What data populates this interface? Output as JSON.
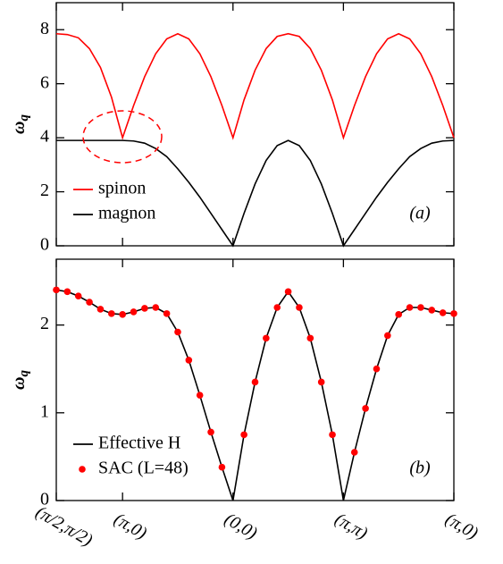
{
  "chart_data": [
    {
      "type": "line",
      "ylabel": "ω",
      "ylabel_subscript": "q",
      "panel_label": "(a)",
      "legend": "lower left",
      "xlim": [
        0,
        3.6
      ],
      "xticks": [
        0,
        0.6,
        1.6,
        2.6,
        3.6
      ],
      "ylim": [
        0,
        9
      ],
      "yticks": [
        0,
        2,
        4,
        6,
        8
      ],
      "x": [
        0,
        0.1,
        0.2,
        0.3,
        0.4,
        0.5,
        0.6,
        0.7,
        0.8,
        0.9,
        1.0,
        1.1,
        1.2,
        1.3,
        1.4,
        1.5,
        1.6,
        1.7,
        1.8,
        1.9,
        2.0,
        2.1,
        2.2,
        2.3,
        2.4,
        2.5,
        2.6,
        2.7,
        2.8,
        2.9,
        3.0,
        3.1,
        3.2,
        3.3,
        3.4,
        3.5,
        3.6
      ],
      "series": [
        {
          "name": "spinon",
          "color": "#ff0000",
          "type": "line",
          "values": [
            7.85,
            7.82,
            7.7,
            7.3,
            6.6,
            5.5,
            4.0,
            5.19,
            6.26,
            7.11,
            7.66,
            7.85,
            7.66,
            7.11,
            6.26,
            5.19,
            4,
            5.4,
            6.5,
            7.3,
            7.75,
            7.85,
            7.75,
            7.3,
            6.5,
            5.4,
            4,
            5.19,
            6.26,
            7.11,
            7.66,
            7.85,
            7.66,
            7.11,
            6.26,
            5.19,
            4
          ]
        },
        {
          "name": "magnon",
          "color": "#000000",
          "type": "line",
          "values": [
            3.9,
            3.9,
            3.9,
            3.9,
            3.9,
            3.9,
            3.9,
            3.88,
            3.8,
            3.6,
            3.3,
            2.85,
            2.35,
            1.8,
            1.2,
            0.6,
            0,
            1.2,
            2.29,
            3.16,
            3.71,
            3.9,
            3.71,
            3.16,
            2.29,
            1.2,
            0,
            0.6,
            1.2,
            1.8,
            2.35,
            2.85,
            3.3,
            3.6,
            3.8,
            3.88,
            3.9
          ]
        }
      ]
    },
    {
      "type": "line",
      "ylabel": "ω",
      "ylabel_subscript": "q",
      "panel_label": "(b)",
      "legend": "lower left",
      "xlim": [
        0,
        3.6
      ],
      "xticks": [
        {
          "value": 0,
          "label": "(π/2,π/2)"
        },
        {
          "value": 0.6,
          "label": "(π,0)"
        },
        {
          "value": 1.6,
          "label": "(0,0)"
        },
        {
          "value": 2.6,
          "label": "(π,π)"
        },
        {
          "value": 3.6,
          "label": "(π,0)"
        }
      ],
      "ylim": [
        0,
        2.75
      ],
      "yticks": [
        0,
        1,
        2
      ],
      "x": [
        0,
        0.1,
        0.2,
        0.3,
        0.4,
        0.5,
        0.6,
        0.7,
        0.8,
        0.9,
        1.0,
        1.1,
        1.2,
        1.3,
        1.4,
        1.5,
        1.6,
        1.7,
        1.8,
        1.9,
        2.0,
        2.1,
        2.2,
        2.3,
        2.4,
        2.5,
        2.6,
        2.7,
        2.8,
        2.9,
        3.0,
        3.1,
        3.2,
        3.3,
        3.4,
        3.5,
        3.6
      ],
      "series": [
        {
          "name": "Effective H",
          "color": "#000000",
          "type": "line",
          "values": [
            2.4,
            2.38,
            2.33,
            2.26,
            2.18,
            2.13,
            2.12,
            2.15,
            2.19,
            2.2,
            2.13,
            1.92,
            1.6,
            1.2,
            0.78,
            0.38,
            0,
            0.75,
            1.35,
            1.85,
            2.2,
            2.38,
            2.2,
            1.85,
            1.35,
            0.75,
            0,
            0.55,
            1.05,
            1.5,
            1.88,
            2.12,
            2.2,
            2.2,
            2.17,
            2.14,
            2.13
          ]
        },
        {
          "name": "SAC (L=48)",
          "color": "#ff0000",
          "type": "scatter",
          "values": [
            2.4,
            2.38,
            2.33,
            2.26,
            2.18,
            2.13,
            2.12,
            2.15,
            2.19,
            2.2,
            2.13,
            1.92,
            1.6,
            1.2,
            0.78,
            0.38,
            null,
            0.75,
            1.35,
            1.85,
            2.2,
            2.38,
            2.2,
            1.85,
            1.35,
            0.75,
            null,
            0.55,
            1.05,
            1.5,
            1.88,
            2.12,
            2.2,
            2.2,
            2.17,
            2.14,
            2.13
          ]
        }
      ]
    }
  ]
}
